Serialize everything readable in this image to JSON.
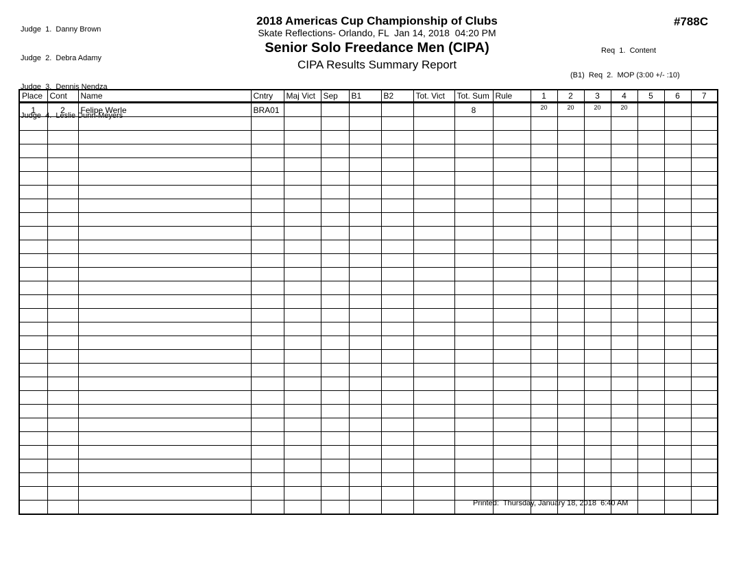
{
  "header": {
    "judges": [
      "Judge  1.  Danny Brown",
      "Judge  2.  Debra Adamy",
      "Judge  3.  Dennis Nendza",
      "Judge  4.  Leslie Dunn-Meyers"
    ],
    "title": "2018 Americas Cup Championship of Clubs",
    "venue_line": "Skate Reflections- Orlando, FL  Jan 14, 2018  04:20 PM",
    "event_title": "Senior Solo Freedance Men (CIPA)",
    "report_title": "CIPA Results Summary Report",
    "event_number": "#788C",
    "requirements": [
      "Req  1.  Content",
      "(B1)  Req  2.  MOP (3:00 +/- :10)"
    ]
  },
  "table": {
    "columns": [
      "Place",
      "Cont",
      "Name",
      "Cntry",
      "Maj Vict",
      "Sep",
      "B1",
      "B2",
      "Tot. Vict",
      "Tot. Sum",
      "Rule",
      "1",
      "2",
      "3",
      "4",
      "5",
      "6",
      "7"
    ],
    "rows": [
      [
        "1",
        "2",
        "Felipe Werle",
        "BRA01",
        "",
        "",
        "",
        "",
        "",
        "8",
        "",
        "20",
        "20",
        "20",
        "20",
        "",
        "",
        ""
      ]
    ],
    "row_count": 30
  },
  "footer": {
    "printed_label": "Printed:  Thursday, January 18, 2018  6:40 AM"
  }
}
